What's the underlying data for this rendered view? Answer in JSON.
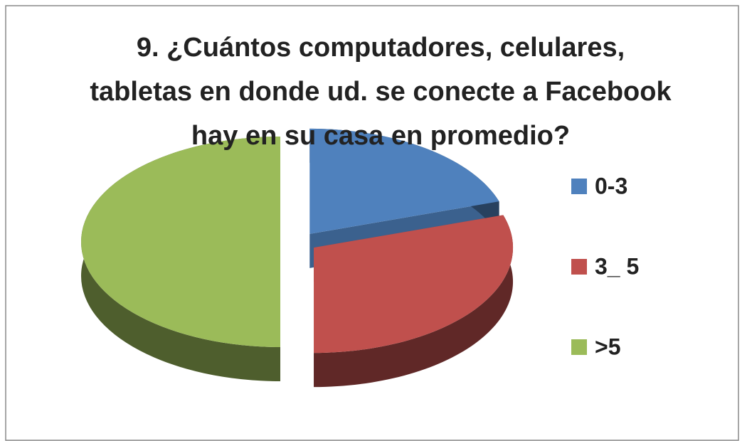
{
  "chart_data": {
    "type": "pie",
    "title": "9. ¿Cuántos computadores, celulares, tabletas en donde ud. se conecte a Facebook hay en su casa en promedio?",
    "categories": [
      "0-3",
      "3_ 5",
      ">5"
    ],
    "values": [
      20,
      30,
      50
    ],
    "colors": [
      "#4f81bd",
      "#c0504d",
      "#9bbb59"
    ],
    "legend": "right"
  }
}
